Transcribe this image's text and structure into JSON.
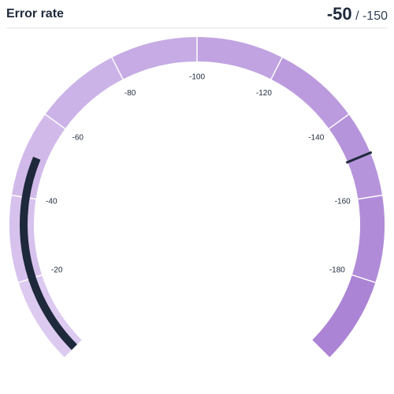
{
  "chart_data": {
    "type": "gauge",
    "title": "Error rate",
    "value": -50,
    "target": -150,
    "range": [
      0,
      -200
    ],
    "ticks": [
      -20,
      -40,
      -60,
      -80,
      -100,
      -120,
      -140,
      -160,
      -180
    ],
    "band_colors": [
      "#dccaf0",
      "#ab84d5"
    ],
    "value_color": "#1e293b",
    "target_color": "#1e293b"
  }
}
